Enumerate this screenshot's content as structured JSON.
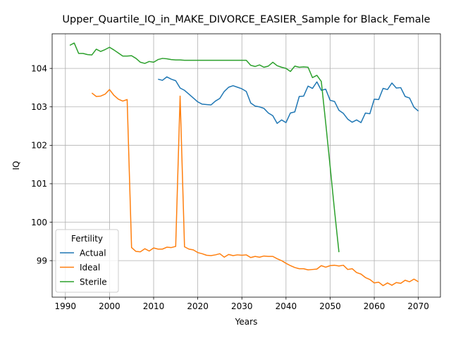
{
  "chart_data": {
    "type": "line",
    "title": "Upper_Quartile_IQ_in_MAKE_DIVORCE_EASIER_Sample for Black_Female",
    "xlabel": "Years",
    "ylabel": "IQ",
    "xlim": [
      1987,
      2075
    ],
    "ylim": [
      98.05,
      104.9
    ],
    "xticks": [
      1990,
      2000,
      2010,
      2020,
      2030,
      2040,
      2050,
      2060,
      2070
    ],
    "yticks": [
      99,
      100,
      101,
      102,
      103,
      104
    ],
    "grid": true,
    "legend": {
      "title": "Fertility",
      "position": "lower-left"
    },
    "series": [
      {
        "name": "Actual",
        "color": "#1f77b4",
        "x": [
          2011,
          2012,
          2013,
          2014,
          2015,
          2016,
          2017,
          2018,
          2019,
          2020,
          2021,
          2022,
          2023,
          2024,
          2025,
          2026,
          2027,
          2028,
          2029,
          2030,
          2031,
          2032,
          2033,
          2034,
          2035,
          2036,
          2037,
          2038,
          2039,
          2040,
          2041,
          2042,
          2043,
          2044,
          2045,
          2046,
          2047,
          2048,
          2049,
          2050,
          2051,
          2052,
          2053,
          2054,
          2055,
          2056,
          2057,
          2058,
          2059,
          2060,
          2061,
          2062,
          2063,
          2064,
          2065,
          2066,
          2067,
          2068,
          2069,
          2070
        ],
        "y": [
          103.72,
          103.69,
          103.78,
          103.72,
          103.68,
          103.49,
          103.43,
          103.33,
          103.23,
          103.13,
          103.07,
          103.06,
          103.05,
          103.15,
          103.22,
          103.4,
          103.51,
          103.55,
          103.51,
          103.47,
          103.4,
          103.1,
          103.02,
          103.0,
          102.96,
          102.84,
          102.77,
          102.57,
          102.66,
          102.59,
          102.84,
          102.87,
          103.27,
          103.28,
          103.54,
          103.48,
          103.65,
          103.43,
          103.46,
          103.17,
          103.14,
          102.91,
          102.83,
          102.68,
          102.6,
          102.66,
          102.59,
          102.84,
          102.82,
          103.2,
          103.19,
          103.48,
          103.45,
          103.62,
          103.49,
          103.5,
          103.27,
          103.23,
          102.99,
          102.89
        ]
      },
      {
        "name": "Ideal",
        "color": "#ff7f0e",
        "x": [
          1996,
          1997,
          1998,
          1999,
          2000,
          2001,
          2002,
          2003,
          2004,
          2005,
          2006,
          2007,
          2008,
          2009,
          2010,
          2011,
          2012,
          2013,
          2014,
          2015,
          2016,
          2017,
          2018,
          2019,
          2020,
          2021,
          2022,
          2023,
          2024,
          2025,
          2026,
          2027,
          2028,
          2029,
          2030,
          2031,
          2032,
          2033,
          2034,
          2035,
          2036,
          2037,
          2038,
          2039,
          2040,
          2041,
          2042,
          2043,
          2044,
          2045,
          2046,
          2047,
          2048,
          2049,
          2050,
          2051,
          2052,
          2053,
          2054,
          2055,
          2056,
          2057,
          2058,
          2059,
          2060,
          2061,
          2062,
          2063,
          2064,
          2065,
          2066,
          2067,
          2068,
          2069,
          2070
        ],
        "y": [
          103.36,
          103.27,
          103.28,
          103.33,
          103.45,
          103.3,
          103.2,
          103.15,
          103.19,
          99.34,
          99.24,
          99.23,
          99.31,
          99.25,
          99.33,
          99.3,
          99.3,
          99.35,
          99.34,
          99.37,
          103.28,
          99.36,
          99.3,
          99.28,
          99.21,
          99.18,
          99.14,
          99.13,
          99.15,
          99.18,
          99.09,
          99.16,
          99.13,
          99.15,
          99.14,
          99.15,
          99.08,
          99.11,
          99.09,
          99.12,
          99.11,
          99.11,
          99.05,
          99.0,
          98.93,
          98.87,
          98.82,
          98.79,
          98.79,
          98.76,
          98.77,
          98.78,
          98.87,
          98.83,
          98.87,
          98.88,
          98.86,
          98.88,
          98.77,
          98.79,
          98.69,
          98.65,
          98.56,
          98.51,
          98.42,
          98.44,
          98.35,
          98.42,
          98.36,
          98.43,
          98.41,
          98.49,
          98.45,
          98.52,
          98.45
        ]
      },
      {
        "name": "Sterile",
        "color": "#2ca02c",
        "x": [
          1991,
          1992,
          1993,
          1994,
          1995,
          1996,
          1997,
          1998,
          1999,
          2000,
          2001,
          2002,
          2003,
          2004,
          2005,
          2006,
          2007,
          2008,
          2009,
          2010,
          2011,
          2012,
          2013,
          2014,
          2015,
          2016,
          2017,
          2018,
          2019,
          2020,
          2021,
          2022,
          2023,
          2024,
          2025,
          2026,
          2027,
          2028,
          2029,
          2030,
          2031,
          2032,
          2033,
          2034,
          2035,
          2036,
          2037,
          2038,
          2039,
          2040,
          2041,
          2042,
          2043,
          2044,
          2045,
          2046,
          2047,
          2048,
          2049,
          2050,
          2051,
          2052
        ],
        "y": [
          104.6,
          104.66,
          104.39,
          104.39,
          104.36,
          104.35,
          104.5,
          104.44,
          104.49,
          104.55,
          104.48,
          104.4,
          104.32,
          104.32,
          104.33,
          104.26,
          104.16,
          104.13,
          104.18,
          104.16,
          104.23,
          104.26,
          104.25,
          104.23,
          104.22,
          104.22,
          104.21,
          104.21,
          104.21,
          104.21,
          104.21,
          104.21,
          104.21,
          104.21,
          104.21,
          104.21,
          104.21,
          104.21,
          104.21,
          104.21,
          104.21,
          104.08,
          104.05,
          104.09,
          104.03,
          104.06,
          104.16,
          104.07,
          104.03,
          104.0,
          103.92,
          104.06,
          104.03,
          104.04,
          104.03,
          103.76,
          103.82,
          103.66,
          102.58,
          101.45,
          100.3,
          99.22
        ]
      }
    ]
  }
}
